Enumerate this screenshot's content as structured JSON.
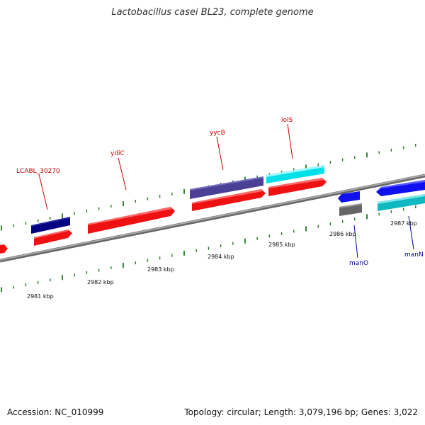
{
  "title": "Lactobacillus casei BL23, complete genome",
  "accession": "Accession: NC_010999",
  "topology": "Topology: circular; Length: 3,079,196 bp; Genes: 3,022",
  "colors": {
    "backbone": "#8a8a8a",
    "tick": "#1f7a1f",
    "label_red": "#cc0000",
    "label_blue": "#0000aa"
  },
  "tick_labels": [
    "2981 kbp",
    "2982 kbp",
    "2983 kbp",
    "2984 kbp",
    "2985 kbp",
    "2986 kbp",
    "2987 kbp"
  ],
  "genes": [
    {
      "name": "LCABL_30270",
      "label_color": "#cc0000"
    },
    {
      "name": "ydiC",
      "label_color": "#cc0000"
    },
    {
      "name": "yycB",
      "label_color": "#cc0000"
    },
    {
      "name": "iolS",
      "label_color": "#cc0000"
    },
    {
      "name": "manO",
      "label_color": "#0000aa"
    },
    {
      "name": "manN",
      "label_color": "#0000aa"
    }
  ]
}
